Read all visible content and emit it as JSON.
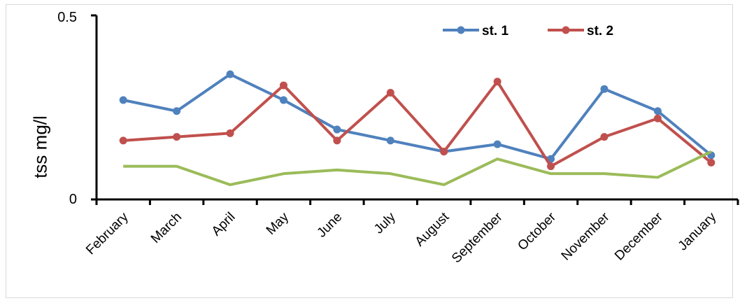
{
  "chart_data": {
    "type": "line",
    "title": "",
    "xlabel": "",
    "ylabel": "tss  mg/l",
    "ylim": [
      0,
      0.5
    ],
    "yticks": [
      "0",
      "0.5"
    ],
    "grid": false,
    "legend_position": "top-right",
    "categories": [
      "February",
      "March",
      "April",
      "May",
      "June",
      "July",
      "August",
      "September",
      "October",
      "November",
      "December",
      "January"
    ],
    "series": [
      {
        "name": "st. 1",
        "color": "#4f81bd",
        "marker": "circle",
        "values": [
          0.27,
          0.24,
          0.34,
          0.27,
          0.19,
          0.16,
          0.13,
          0.15,
          0.11,
          0.3,
          0.24,
          0.12
        ]
      },
      {
        "name": "st. 2",
        "color": "#c0504d",
        "marker": "circle",
        "values": [
          0.16,
          0.17,
          0.18,
          0.31,
          0.16,
          0.29,
          0.13,
          0.32,
          0.09,
          0.17,
          0.22,
          0.1
        ]
      },
      {
        "name": "",
        "color": "#9bbb59",
        "marker": "none",
        "in_legend": false,
        "values": [
          0.09,
          0.09,
          0.04,
          0.07,
          0.08,
          0.07,
          0.04,
          0.11,
          0.07,
          0.07,
          0.06,
          0.13
        ]
      }
    ]
  }
}
